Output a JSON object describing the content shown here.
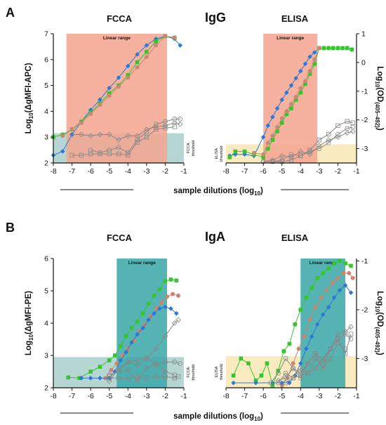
{
  "figure": {
    "panels": [
      {
        "letter": "A",
        "antibody": "IgG"
      },
      {
        "letter": "B",
        "antibody": "IgA"
      }
    ],
    "xlabel": "sample dilutions (log",
    "xlabel_sub": "10",
    "xlabel_end": ")"
  },
  "colors": {
    "red_range": "#f4a58e",
    "teal_range": "#3aa7a7",
    "teal_thresh": "#a9cfcc",
    "yellow_thresh": "#f9e6b4",
    "blue": "#2b78d6",
    "green": "#37c52f",
    "brown": "#c98872",
    "gray": "#888888"
  },
  "chart_data": [
    {
      "id": "A-FCCA",
      "type": "line",
      "title": "FCCA",
      "ylabel_pre": "Log",
      "ylabel_sub": "10",
      "ylabel_post": "(ΔgMFI-APC)",
      "xlim": [
        -8,
        -1
      ],
      "ylim": [
        2,
        7
      ],
      "xticks": [
        "-8",
        "-7",
        "-6",
        "-5",
        "-4",
        "-3",
        "-2",
        "-1"
      ],
      "yticks": [
        "2",
        "3",
        "4",
        "5",
        "6",
        "7"
      ],
      "range_label": "Linear range",
      "range_x": [
        -7.3,
        -1.9
      ],
      "threshold_label": [
        "FCCA",
        "threshold"
      ],
      "threshold_y": 3.15,
      "series": [
        {
          "color": "blue",
          "marker": "diamond",
          "x": [
            -8,
            -7.5,
            -7,
            -6.5,
            -6,
            -5.5,
            -5,
            -4.5,
            -4,
            -3.5,
            -3,
            -2.5,
            -2,
            -1.5,
            -1.2
          ],
          "y": [
            2.3,
            2.45,
            3.1,
            3.6,
            4.05,
            4.45,
            4.9,
            5.3,
            5.75,
            6.2,
            6.55,
            6.8,
            6.9,
            6.8,
            6.55
          ]
        },
        {
          "color": "green",
          "marker": "square",
          "x": [
            -8,
            -7.5,
            -7,
            -6.5,
            -6,
            -5.5,
            -5,
            -4.5,
            -4,
            -3.5,
            -3,
            -2.5,
            -2,
            -1.5
          ],
          "y": [
            3.0,
            3.1,
            3.3,
            3.6,
            3.95,
            4.3,
            4.7,
            5.0,
            5.4,
            5.9,
            6.3,
            6.7,
            6.9,
            6.85
          ]
        },
        {
          "color": "brown",
          "marker": "circle",
          "x": [
            -7.5,
            -7,
            -6.5,
            -6,
            -5.5,
            -5,
            -4.5,
            -4,
            -3.5,
            -3,
            -2.5,
            -2,
            -1.5
          ],
          "y": [
            3.05,
            3.3,
            3.55,
            3.9,
            4.25,
            4.6,
            4.95,
            5.3,
            5.7,
            6.1,
            6.55,
            6.9,
            6.85
          ]
        },
        {
          "color": "gray",
          "marker": "open-circle",
          "x": [
            -6,
            -5.5,
            -5,
            -4.5,
            -4,
            -3.5,
            -3,
            -2.5,
            -2,
            -1.5,
            -1.2
          ],
          "y": [
            2.5,
            2.4,
            2.5,
            2.6,
            2.4,
            2.9,
            3.2,
            3.5,
            3.6,
            3.7,
            3.7
          ]
        },
        {
          "color": "gray",
          "marker": "open-diamond",
          "x": [
            -7,
            -6.5,
            -6,
            -5.5,
            -5,
            -4.5,
            -4,
            -3.5,
            -3,
            -2.5,
            -2,
            -1.5,
            -1.2
          ],
          "y": [
            3.1,
            3.1,
            3.05,
            3.1,
            3.1,
            2.9,
            3.05,
            3.05,
            3.3,
            3.4,
            3.45,
            3.55,
            3.5
          ]
        },
        {
          "color": "gray",
          "marker": "open-square",
          "x": [
            -7,
            -6.5,
            -6,
            -5.5,
            -5,
            -4.5,
            -4,
            -3.5,
            -3,
            -2.5,
            -2,
            -1.5
          ],
          "y": [
            2.3,
            2.3,
            2.35,
            2.35,
            2.35,
            2.35,
            2.3,
            2.8,
            3.0,
            3.3,
            3.35,
            3.4
          ]
        }
      ]
    },
    {
      "id": "A-ELISA",
      "type": "line",
      "title": "ELISA",
      "ylabel_pre": "Log",
      "ylabel_sub": "10",
      "ylabel_post": "(OD",
      "ylabel_sub2": "(405–492)",
      "ylabel_end": ")",
      "xlim": [
        -8,
        -1
      ],
      "ylim": [
        -3.5,
        1
      ],
      "xticks": [
        "-8",
        "-7",
        "-6",
        "-5",
        "-4",
        "-3",
        "-2",
        "-1"
      ],
      "yticks": [
        "-3",
        "-2",
        "-1",
        "0",
        "1"
      ],
      "range_label": "Linear range",
      "range_x": [
        -6,
        -3.1
      ],
      "threshold_label": [
        "ELISA",
        "threshold"
      ],
      "threshold_y": -2.85,
      "series": [
        {
          "color": "blue",
          "marker": "diamond",
          "x": [
            -7.8,
            -7.5,
            -7,
            -6.5,
            -6,
            -5.75,
            -5.5,
            -5.25,
            -5,
            -4.75,
            -4.5,
            -4.25,
            -4,
            -3.75,
            -3.5,
            -3.25,
            -3,
            -2.75,
            -2.5,
            -2.25,
            -2,
            -1.75,
            -1.5,
            -1.25
          ],
          "y": [
            -3.25,
            -3.2,
            -3.2,
            -3.25,
            -2.6,
            -2.2,
            -1.9,
            -1.6,
            -1.3,
            -1.05,
            -0.8,
            -0.55,
            -0.3,
            -0.05,
            0.2,
            0.35,
            0.5,
            0.5,
            0.5,
            0.5,
            0.5,
            0.5,
            0.5,
            0.45
          ]
        },
        {
          "color": "green",
          "marker": "square",
          "x": [
            -7.8,
            -7.5,
            -7,
            -6.5,
            -6,
            -5.75,
            -5.5,
            -5.25,
            -5,
            -4.75,
            -4.5,
            -4.25,
            -4,
            -3.75,
            -3.5,
            -3.25,
            -3,
            -2.75,
            -2.5,
            -2.25,
            -2,
            -1.75,
            -1.5,
            -1.25
          ],
          "y": [
            -3.3,
            -3.1,
            -3.1,
            -3.2,
            -3.3,
            -3.0,
            -2.7,
            -2.4,
            -2.1,
            -1.8,
            -1.6,
            -1.3,
            -1.05,
            -0.75,
            -0.4,
            -0.05,
            0.5,
            0.5,
            0.5,
            0.5,
            0.5,
            0.5,
            0.5,
            0.45
          ]
        },
        {
          "color": "brown",
          "marker": "circle",
          "x": [
            -6.5,
            -6,
            -5.75,
            -5.5,
            -5.25,
            -5,
            -4.75,
            -4.5,
            -4.25,
            -4,
            -3.75,
            -3.5,
            -3.25,
            -3
          ],
          "y": [
            -3.15,
            -3.2,
            -2.8,
            -2.55,
            -2.25,
            -1.95,
            -1.7,
            -1.45,
            -1.2,
            -0.9,
            -0.65,
            -0.3,
            0.1,
            0.5
          ]
        },
        {
          "color": "gray",
          "marker": "open-circle",
          "x": [
            -6,
            -5.5,
            -5,
            -4.5,
            -4,
            -3.5,
            -3,
            -2.5,
            -2,
            -1.5,
            -1.2
          ],
          "y": [
            -3.45,
            -3.45,
            -3.4,
            -3.2,
            -3.25,
            -3.1,
            -3.0,
            -2.8,
            -2.5,
            -2.3,
            -2.25
          ]
        },
        {
          "color": "gray",
          "marker": "open-diamond",
          "x": [
            -6,
            -5.5,
            -5,
            -4.5,
            -4,
            -3.5,
            -3,
            -2.5,
            -2,
            -1.5,
            -1.2
          ],
          "y": [
            -3.45,
            -3.4,
            -3.25,
            -3.3,
            -3.1,
            -3.2,
            -2.9,
            -2.7,
            -2.6,
            -2.45,
            -2.4
          ]
        },
        {
          "color": "gray",
          "marker": "open-square",
          "x": [
            -5.5,
            -5,
            -4.5,
            -4,
            -3.5,
            -3,
            -2.5,
            -2,
            -1.5,
            -1.2
          ],
          "y": [
            -3.45,
            -3.45,
            -3.4,
            -3.25,
            -3.05,
            -2.7,
            -2.5,
            -2.2,
            -2.05,
            -2.1
          ]
        }
      ]
    },
    {
      "id": "B-FCCA",
      "type": "line",
      "title": "FCCA",
      "ylabel_pre": "Log",
      "ylabel_sub": "10",
      "ylabel_post": "(ΔgMFI-PE)",
      "xlim": [
        -8,
        -1
      ],
      "ylim": [
        2,
        6
      ],
      "xticks": [
        "-8",
        "-7",
        "-6",
        "-5",
        "-4",
        "-3",
        "-2",
        "-1"
      ],
      "yticks": [
        "2",
        "3",
        "4",
        "5",
        "6"
      ],
      "range_label": "Linear range",
      "range_x": [
        -4.6,
        -1.9
      ],
      "threshold_label": [
        "FCCA",
        "threshold"
      ],
      "threshold_y": 2.95,
      "series": [
        {
          "color": "green",
          "marker": "square",
          "x": [
            -7.2,
            -6.6,
            -6,
            -5.5,
            -5,
            -4.7,
            -4.4,
            -4.1,
            -3.8,
            -3.5,
            -3.2,
            -2.9,
            -2.6,
            -2.3,
            -2.0,
            -1.7,
            -1.4
          ],
          "y": [
            2.32,
            2.3,
            2.5,
            2.65,
            2.85,
            3.0,
            3.3,
            3.6,
            3.85,
            4.05,
            4.3,
            4.6,
            4.85,
            5.05,
            5.3,
            5.35,
            5.32
          ]
        },
        {
          "color": "brown",
          "marker": "circle",
          "x": [
            -5.2,
            -4.9,
            -4.6,
            -4.3,
            -4.0,
            -3.7,
            -3.4,
            -3.1,
            -2.8,
            -2.5,
            -2.2,
            -1.9,
            -1.6,
            -1.3
          ],
          "y": [
            2.3,
            2.55,
            2.75,
            3.0,
            3.2,
            3.45,
            3.75,
            3.95,
            4.2,
            4.45,
            4.65,
            4.82,
            4.9,
            4.85
          ]
        },
        {
          "color": "blue",
          "marker": "diamond",
          "x": [
            -6.5,
            -6,
            -5.5,
            -5,
            -4.7,
            -4.4,
            -4.1,
            -3.8,
            -3.5,
            -3.2,
            -2.9,
            -2.6,
            -2.3,
            -2.0,
            -1.7,
            -1.4
          ],
          "y": [
            2.3,
            2.3,
            2.3,
            2.3,
            2.5,
            2.85,
            3.1,
            3.4,
            3.65,
            3.85,
            4.1,
            4.3,
            4.45,
            4.5,
            4.45,
            4.3
          ]
        },
        {
          "color": "gray",
          "marker": "open-diamond",
          "x": [
            -5,
            -4.5,
            -4,
            -3.5,
            -3,
            -2.5,
            -2,
            -1.5,
            -1.3
          ],
          "y": [
            2.2,
            2.6,
            2.8,
            2.7,
            2.9,
            3.2,
            3.6,
            4.0,
            4.1
          ]
        },
        {
          "color": "gray",
          "marker": "open-circle",
          "x": [
            -5,
            -4.5,
            -4,
            -3.5,
            -3,
            -2.5,
            -2,
            -1.5,
            -1.2
          ],
          "y": [
            2.4,
            2.5,
            2.8,
            2.85,
            2.95,
            2.7,
            2.8,
            2.8,
            2.75
          ]
        },
        {
          "color": "gray",
          "marker": "open-square",
          "x": [
            -5,
            -4.5,
            -4,
            -3.5,
            -3,
            -2.5,
            -2,
            -1.5,
            -1.3
          ],
          "y": [
            2.3,
            2.3,
            2.3,
            2.35,
            2.3,
            2.35,
            2.35,
            2.3,
            2.35
          ]
        },
        {
          "color": "gray",
          "marker": "open-circle",
          "x": [
            -4.5,
            -4,
            -3.5,
            -3,
            -2.5,
            -2,
            -1.5
          ],
          "y": [
            2.5,
            2.55,
            2.2,
            2.6,
            2.75,
            2.5,
            2.4
          ]
        }
      ]
    },
    {
      "id": "B-ELISA",
      "type": "line",
      "title": "ELISA",
      "ylabel_pre": "Log",
      "ylabel_sub": "10",
      "ylabel_post": "(OD",
      "ylabel_sub2": "(405–492)",
      "ylabel_end": ")",
      "xlim": [
        -8,
        -1
      ],
      "ylim": [
        -3.6,
        -0.95
      ],
      "xticks": [
        "-8",
        "-7",
        "-6",
        "-5",
        "-4",
        "-3",
        "-2",
        "-1"
      ],
      "yticks": [
        "-3",
        "-2",
        "-1"
      ],
      "range_label": "Linear range",
      "range_x": [
        -4,
        -1.6
      ],
      "threshold_label": [
        "ELISA",
        "threshold"
      ],
      "threshold_y": -2.95,
      "series": [
        {
          "color": "green",
          "marker": "square",
          "x": [
            -7.6,
            -7.2,
            -6.8,
            -6.4,
            -6.1,
            -5.8,
            -5.5,
            -5.2,
            -4.9,
            -4.6,
            -4.3,
            -4.0,
            -3.7,
            -3.4,
            -3.1,
            -2.8,
            -2.5,
            -2.2,
            -1.9,
            -1.6,
            -1.3
          ],
          "y": [
            -3.35,
            -3.0,
            -3.1,
            -3.45,
            -3.35,
            -3.1,
            -3.55,
            -3.25,
            -2.85,
            -2.7,
            -2.3,
            -2.0,
            -1.75,
            -1.55,
            -1.35,
            -1.25,
            -1.15,
            -1.05,
            -1.0,
            -1.05,
            -1.1
          ]
        },
        {
          "color": "brown",
          "marker": "circle",
          "x": [
            -5.0,
            -4.7,
            -4.4,
            -4.1,
            -3.8,
            -3.5,
            -3.2,
            -2.9,
            -2.6,
            -2.3,
            -2.0,
            -1.7,
            -1.4,
            -1.2
          ],
          "y": [
            -3.55,
            -3.4,
            -3.1,
            -2.8,
            -2.55,
            -2.2,
            -1.95,
            -1.75,
            -1.6,
            -1.45,
            -1.35,
            -1.25,
            -1.25,
            -1.35
          ]
        },
        {
          "color": "blue",
          "marker": "diamond",
          "x": [
            -7.6,
            -6.4,
            -5.5,
            -5,
            -4.6,
            -4.3,
            -4.0,
            -3.7,
            -3.4,
            -3.1,
            -2.8,
            -2.5,
            -2.2,
            -1.9,
            -1.6,
            -1.3
          ],
          "y": [
            -3.5,
            -3.5,
            -3.5,
            -3.5,
            -3.5,
            -3.35,
            -3.1,
            -2.8,
            -2.55,
            -2.3,
            -2.1,
            -1.95,
            -1.75,
            -1.6,
            -1.5,
            -1.65
          ]
        },
        {
          "color": "gray",
          "marker": "open-circle",
          "x": [
            -5.2,
            -4.8,
            -4.4,
            -4,
            -3.6,
            -3.2,
            -2.8,
            -2.4,
            -2,
            -1.6,
            -1.3
          ],
          "y": [
            -3.5,
            -3.3,
            -3.4,
            -3.2,
            -3.3,
            -3.0,
            -3.2,
            -2.8,
            -2.6,
            -2.5,
            -2.6
          ]
        },
        {
          "color": "gray",
          "marker": "open-diamond",
          "x": [
            -5.2,
            -4.8,
            -4.4,
            -4,
            -3.6,
            -3.2,
            -2.8,
            -2.4,
            -2,
            -1.6,
            -1.3
          ],
          "y": [
            -3.45,
            -3.4,
            -3.2,
            -3.3,
            -3.1,
            -2.9,
            -3.05,
            -2.8,
            -2.5,
            -2.45,
            -2.35
          ]
        },
        {
          "color": "gray",
          "marker": "open-square",
          "x": [
            -4.8,
            -4.4,
            -4,
            -3.6,
            -3.2,
            -2.8,
            -2.4,
            -2,
            -1.6,
            -1.3
          ],
          "y": [
            -3.5,
            -3.4,
            -3.35,
            -3.3,
            -3.2,
            -3.0,
            -2.8,
            -2.6,
            -2.9,
            -2.5
          ]
        },
        {
          "color": "gray",
          "marker": "open-circle",
          "x": [
            -5.6,
            -5.2,
            -4.8,
            -4.4,
            -4,
            -3.6,
            -3.2,
            -2.8,
            -2.4,
            -2,
            -1.6
          ],
          "y": [
            -3.5,
            -3.3,
            -3.0,
            -3.2,
            -3.4,
            -3.1,
            -2.9,
            -3.2,
            -3.0,
            -2.7,
            -2.8
          ]
        }
      ]
    }
  ]
}
